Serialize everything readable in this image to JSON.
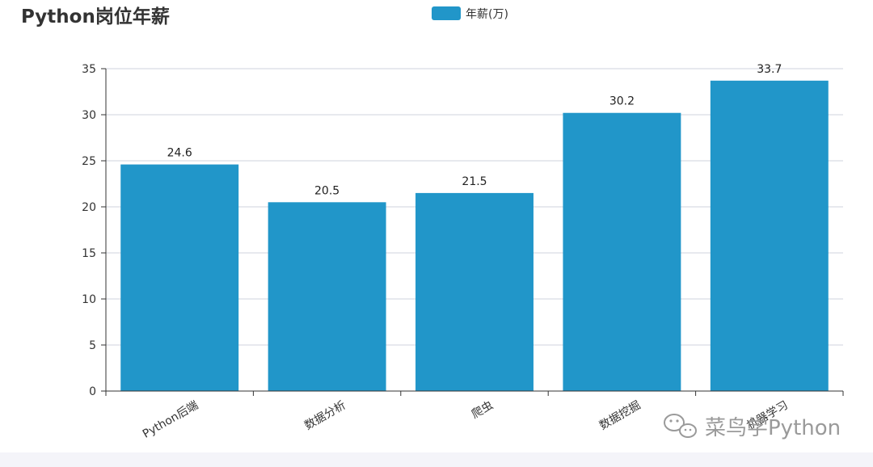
{
  "chart_data": {
    "type": "bar",
    "title": "Python岗位年薪",
    "categories": [
      "Python后端",
      "数据分析",
      "爬虫",
      "数据挖掘",
      "机器学习"
    ],
    "series": [
      {
        "name": "年薪(万)",
        "values": [
          24.6,
          20.5,
          21.5,
          30.2,
          33.7
        ],
        "color": "#2196c9"
      }
    ],
    "ylim": [
      0,
      35
    ],
    "yticks": [
      0,
      5,
      10,
      15,
      20,
      25,
      30,
      35
    ],
    "grid": true,
    "legend_position": "top-center",
    "xlabel": "",
    "ylabel": ""
  },
  "watermark": {
    "text": "菜鸟学Python",
    "icon": "wechat-icon"
  }
}
